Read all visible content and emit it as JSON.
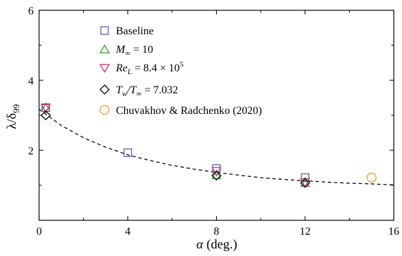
{
  "chart_data": {
    "type": "scatter",
    "xlabel": "α (deg.)",
    "ylabel": "λ/δ99",
    "xlim": [
      0,
      16
    ],
    "ylim": [
      0,
      6
    ],
    "x_ticks": [
      0,
      4,
      8,
      12,
      16
    ],
    "y_ticks": [
      2,
      4,
      6
    ],
    "grid": false,
    "legend_position": "top-left",
    "series": [
      {
        "name": "Baseline",
        "marker": "square",
        "color": "#5b5bb0",
        "points": [
          [
            0.3,
            3.22
          ],
          [
            4,
            1.93
          ],
          [
            8,
            1.48
          ],
          [
            12,
            1.22
          ]
        ]
      },
      {
        "name": "M∞ = 10",
        "marker": "triangle-up",
        "color": "#2ea02e",
        "points": [
          [
            0.3,
            3.22
          ],
          [
            8,
            1.3
          ],
          [
            12,
            1.08
          ]
        ]
      },
      {
        "name": "ReL = 8.4 × 10^5",
        "marker": "triangle-down",
        "color": "#e0207a",
        "points": [
          [
            0.3,
            3.2
          ],
          [
            8,
            1.4
          ],
          [
            12,
            1.08
          ]
        ]
      },
      {
        "name": "Tw/T∞ = 7.032",
        "marker": "diamond",
        "color": "#000000",
        "points": [
          [
            0.3,
            3.0
          ],
          [
            8,
            1.28
          ],
          [
            12,
            1.07
          ]
        ]
      },
      {
        "name": "Chuvakhov & Radchenko (2020)",
        "marker": "circle",
        "color": "#f0962a",
        "points": [
          [
            15,
            1.22
          ]
        ]
      }
    ],
    "fit_curve": {
      "style": "dashed",
      "color": "#000000",
      "x": [
        0,
        1,
        2,
        3,
        4,
        5,
        6,
        7,
        8,
        9,
        10,
        11,
        12,
        13,
        14,
        15,
        16
      ],
      "y": [
        3.17,
        2.71,
        2.36,
        2.09,
        1.87,
        1.71,
        1.57,
        1.46,
        1.37,
        1.29,
        1.22,
        1.17,
        1.13,
        1.09,
        1.06,
        1.04,
        1.01
      ]
    }
  },
  "legend": {
    "baseline": "Baseline",
    "mach_base": "M",
    "mach_sub": "∞",
    "mach_rest": " = 10",
    "re_base": "Re",
    "re_sub": "L",
    "re_rest": " = 8.4 × 10",
    "re_sup": "5",
    "tw_base": "T",
    "tw_sub": "w",
    "tw_mid": "/T",
    "tw_sub2": "∞",
    "tw_rest": " = 7.032",
    "ref": "Chuvakhov & Radchenko (2020)"
  },
  "axes": {
    "xlabel_greek": "α",
    "xlabel_rest": " (deg.)",
    "ylabel_main": "λ/δ",
    "ylabel_sub": "99",
    "x_ticks": [
      "0",
      "4",
      "8",
      "12",
      "16"
    ],
    "y_ticks": [
      "2",
      "4",
      "6"
    ]
  }
}
